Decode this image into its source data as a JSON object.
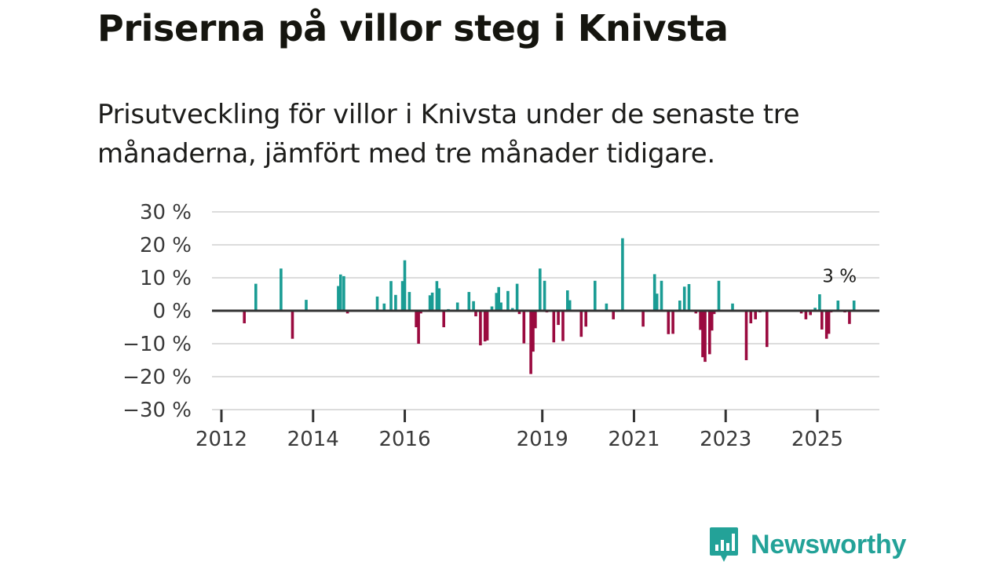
{
  "title": "Priserna på villor steg i Knivsta",
  "subtitle": "Prisutveckling för villor i Knivsta under de senaste tre månaderna, jämfört med tre månader tidigare.",
  "brand": {
    "name": "Newsworthy",
    "icon": "newsworthy-logo-icon"
  },
  "colors": {
    "positive": "#1a9c94",
    "negative": "#9a0a3f",
    "zero_line": "#333333",
    "grid": "#dcdcdc",
    "brand": "#23a298"
  },
  "chart_data": {
    "type": "bar",
    "title": "Priserna på villor steg i Knivsta",
    "xlabel": "",
    "ylabel": "",
    "ylim": [
      -30,
      30
    ],
    "y_ticks": [
      30,
      20,
      10,
      0,
      -10,
      -20,
      -30
    ],
    "y_tick_labels": [
      "30 %",
      "20 %",
      "10 %",
      "0 %",
      "−10 %",
      "−20 %",
      "−30 %"
    ],
    "x_ticks": [
      2012,
      2014,
      2016,
      2019,
      2021,
      2023,
      2025
    ],
    "x_tick_labels": [
      "2012",
      "2014",
      "2016",
      "2019",
      "2021",
      "2023",
      "2025"
    ],
    "xlim": [
      2012,
      2026.5
    ],
    "annotation": {
      "text": "3 %",
      "x": 2025.5,
      "value": 3
    },
    "series": [
      {
        "name": "Prisutveckling",
        "x": [
          2012.5,
          2012.75,
          2013.3,
          2013.55,
          2013.85,
          2014.55,
          2014.6,
          2014.67,
          2014.75,
          2015.4,
          2015.55,
          2015.7,
          2015.8,
          2015.95,
          2016.0,
          2016.1,
          2016.25,
          2016.3,
          2016.35,
          2016.55,
          2016.6,
          2016.7,
          2016.75,
          2016.85,
          2016.95,
          2017.15,
          2017.4,
          2017.5,
          2017.55,
          2017.65,
          2017.75,
          2017.8,
          2017.9,
          2018.0,
          2018.05,
          2018.1,
          2018.25,
          2018.35,
          2018.45,
          2018.5,
          2018.6,
          2018.75,
          2018.8,
          2018.85,
          2018.95,
          2019.05,
          2019.1,
          2019.25,
          2019.35,
          2019.45,
          2019.55,
          2019.6,
          2019.85,
          2019.95,
          2020.15,
          2020.4,
          2020.55,
          2020.75,
          2021.2,
          2021.45,
          2021.5,
          2021.6,
          2021.75,
          2021.85,
          2022.0,
          2022.1,
          2022.2,
          2022.35,
          2022.45,
          2022.5,
          2022.55,
          2022.65,
          2022.7,
          2022.75,
          2022.85,
          2023.15,
          2023.45,
          2023.55,
          2023.65,
          2023.75,
          2023.9,
          2024.65,
          2024.75,
          2024.85,
          2024.95,
          2025.05,
          2025.1,
          2025.2,
          2025.25,
          2025.3,
          2025.45,
          2025.6,
          2025.7,
          2025.8
        ],
        "values": [
          -3.8,
          8.2,
          12.8,
          -8.5,
          3.3,
          7.5,
          11,
          10.5,
          -0.8,
          4.3,
          2.2,
          9,
          4.8,
          9,
          15.3,
          5.7,
          -5,
          -10,
          -0.8,
          4.7,
          5.5,
          9,
          6.8,
          -5,
          0.5,
          2.5,
          5.7,
          2.9,
          -1.7,
          -10.5,
          -9.3,
          -9,
          1.3,
          5.4,
          7.2,
          2.5,
          6,
          0.8,
          8.2,
          -1,
          -9.9,
          -19.2,
          -12.4,
          -5.3,
          12.8,
          9.1,
          -0.5,
          -9.6,
          -4.3,
          -9.2,
          6.2,
          3.2,
          -7.9,
          -4.8,
          9.1,
          2.2,
          -2.6,
          22,
          -4.8,
          11.1,
          5.2,
          9.1,
          -7.1,
          -7,
          3.1,
          7.3,
          8.1,
          -0.8,
          -5.8,
          -14.1,
          -15.5,
          -13.2,
          -6,
          -1,
          9.1,
          2.2,
          -15,
          -3.8,
          -2.6,
          -0.5,
          -11,
          -0.8,
          -2.6,
          -1.3,
          0.9,
          5,
          -5.7,
          -8.5,
          -7,
          -0.5,
          3.1,
          -0.5,
          -4,
          3.1
        ]
      }
    ]
  }
}
